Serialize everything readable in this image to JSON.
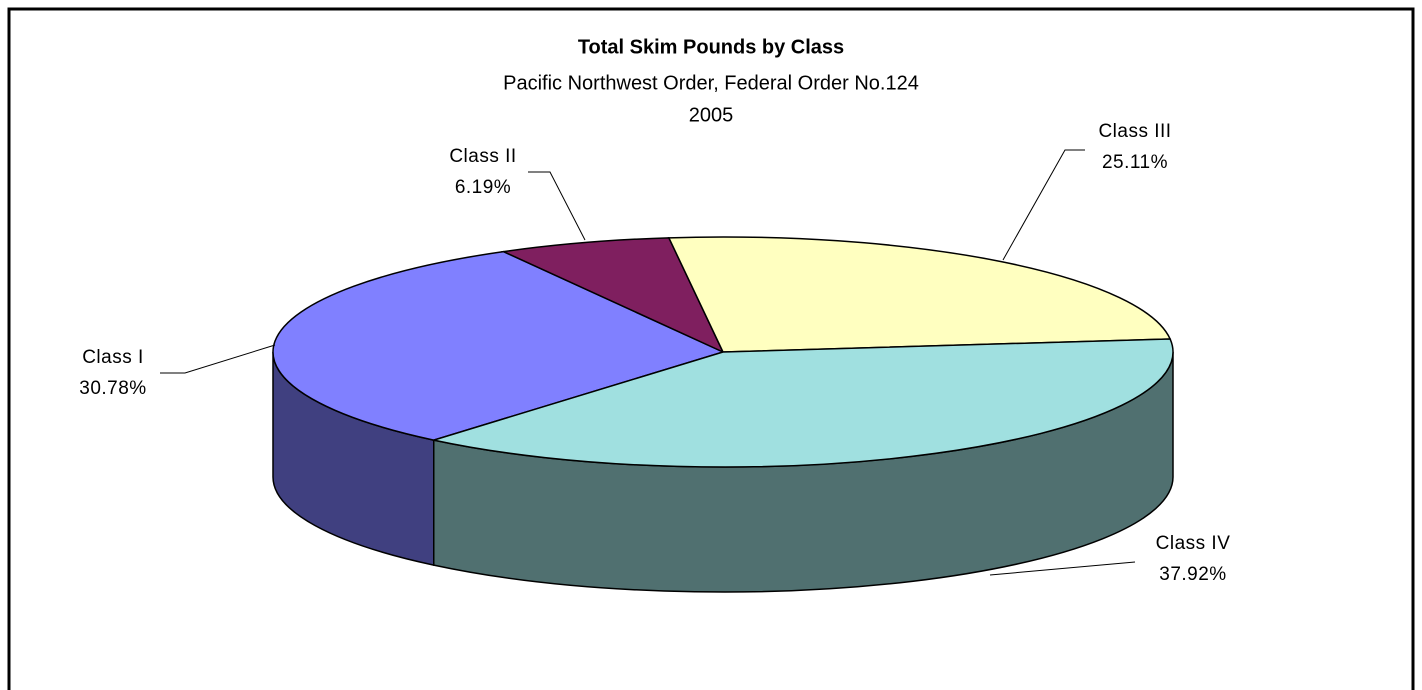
{
  "chart_data": {
    "type": "pie3d",
    "title": "Total Skim Pounds by Class",
    "subtitle": [
      "Pacific Northwest Order, Federal Order No.124",
      "2005"
    ],
    "categories": [
      "Class I",
      "Class II",
      "Class III",
      "Class IV"
    ],
    "values": [
      30.78,
      6.19,
      25.11,
      37.92
    ],
    "value_labels": [
      "30.78%",
      "6.19%",
      "25.11%",
      "37.92%"
    ],
    "colors": [
      "#8080ff",
      "#7f1f5f",
      "#ffffc0",
      "#a0e0e0"
    ]
  }
}
